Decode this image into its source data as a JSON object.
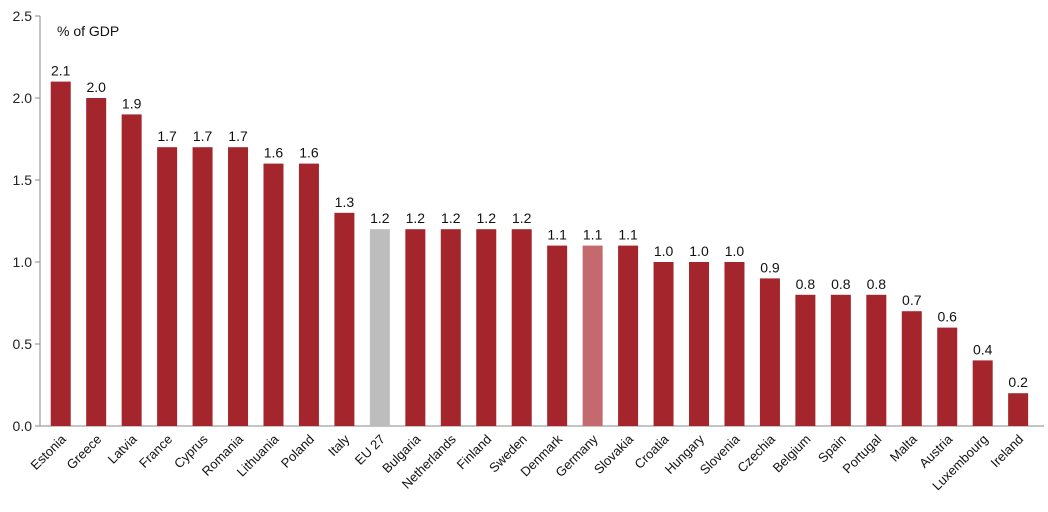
{
  "chart_data": {
    "type": "bar",
    "ylabel": "% of GDP",
    "ylim": [
      0,
      2.5
    ],
    "yticks": [
      "0.0",
      "0.5",
      "1.0",
      "1.5",
      "2.0",
      "2.5"
    ],
    "grid": false,
    "categories": [
      "Estonia",
      "Greece",
      "Latvia",
      "France",
      "Cyprus",
      "Romania",
      "Lithuania",
      "Poland",
      "Italy",
      "EU 27",
      "Bulgaria",
      "Netherlands",
      "Finland",
      "Sweden",
      "Denmark",
      "Germany",
      "Slovakia",
      "Croatia",
      "Hungary",
      "Slovenia",
      "Czechia",
      "Belgium",
      "Spain",
      "Portugal",
      "Malta",
      "Austria",
      "Luxembourg",
      "Ireland"
    ],
    "values": [
      2.1,
      2.0,
      1.9,
      1.7,
      1.7,
      1.7,
      1.6,
      1.6,
      1.3,
      1.2,
      1.2,
      1.2,
      1.2,
      1.2,
      1.1,
      1.1,
      1.1,
      1.0,
      1.0,
      1.0,
      0.9,
      0.8,
      0.8,
      0.8,
      0.7,
      0.6,
      0.4,
      0.2
    ],
    "value_labels": [
      "2.1",
      "2.0",
      "1.9",
      "1.7",
      "1.7",
      "1.7",
      "1.6",
      "1.6",
      "1.3",
      "1.2",
      "1.2",
      "1.2",
      "1.2",
      "1.2",
      "1.1",
      "1.1",
      "1.1",
      "1.0",
      "1.0",
      "1.0",
      "0.9",
      "0.8",
      "0.8",
      "0.8",
      "0.7",
      "0.6",
      "0.4",
      "0.2"
    ],
    "colors": {
      "default": "#A4262C",
      "EU 27": "#BDBDBD",
      "Germany": "#C46A6E"
    }
  }
}
